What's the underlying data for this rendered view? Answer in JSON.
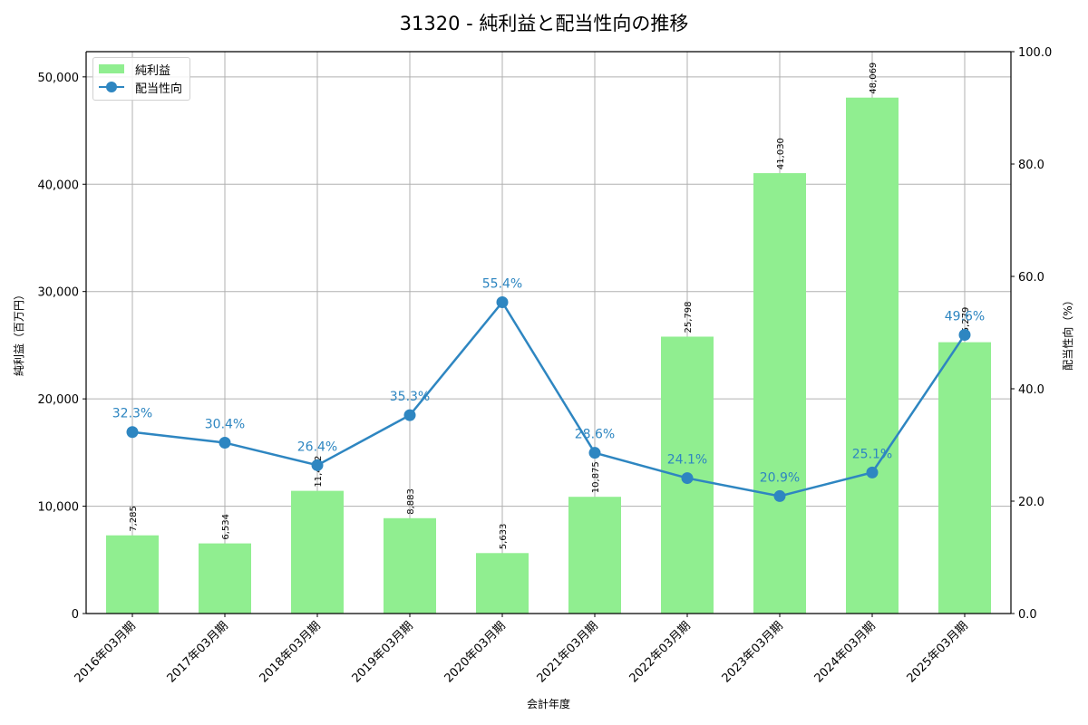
{
  "title": "31320 - 純利益と配当性向の推移",
  "legend": [
    {
      "label": "純利益",
      "type": "bar"
    },
    {
      "label": "配当性向",
      "type": "line"
    }
  ],
  "axes": {
    "xlabel": "会計年度",
    "ylabel_left": "純利益（百万円）",
    "ylabel_right": "配当性向（%）",
    "left_ticks": [
      "0",
      "10,000",
      "20,000",
      "30,000",
      "40,000",
      "50,000"
    ],
    "right_ticks": [
      "0.0",
      "20.0",
      "40.0",
      "60.0",
      "80.0",
      "100.0"
    ]
  },
  "colors": {
    "bar": "#90ee90",
    "line": "#2e86c1",
    "grid": "#b0b0b0"
  },
  "chart_data": {
    "type": "bar+line",
    "title": "31320 - 純利益と配当性向の推移",
    "xlabel": "会計年度",
    "ylabel": "純利益（百万円）",
    "ylabel_right": "配当性向（%）",
    "categories": [
      "2016年03月期",
      "2017年03月期",
      "2018年03月期",
      "2019年03月期",
      "2020年03月期",
      "2021年03月期",
      "2022年03月期",
      "2023年03月期",
      "2024年03月期",
      "2025年03月期"
    ],
    "series": [
      {
        "name": "純利益",
        "type": "bar",
        "axis": "left",
        "values": [
          7285,
          6534,
          11432,
          8883,
          5633,
          10875,
          25798,
          41030,
          48069,
          25279
        ],
        "labels": [
          "7,285",
          "6,534",
          "11,432",
          "8,883",
          "5,633",
          "10,875",
          "25,798",
          "41,030",
          "48,069",
          "25,279"
        ]
      },
      {
        "name": "配当性向",
        "type": "line",
        "axis": "right",
        "values": [
          32.3,
          30.4,
          26.4,
          35.3,
          55.4,
          28.6,
          24.1,
          20.9,
          25.1,
          49.6
        ],
        "labels": [
          "32.3%",
          "30.4%",
          "26.4%",
          "35.3%",
          "55.4%",
          "28.6%",
          "24.1%",
          "20.9%",
          "25.1%",
          "49.6%"
        ]
      }
    ],
    "ylim": [
      0,
      52350
    ],
    "ylim_right": [
      0,
      100
    ],
    "grid": true,
    "legend_position": "upper left"
  }
}
